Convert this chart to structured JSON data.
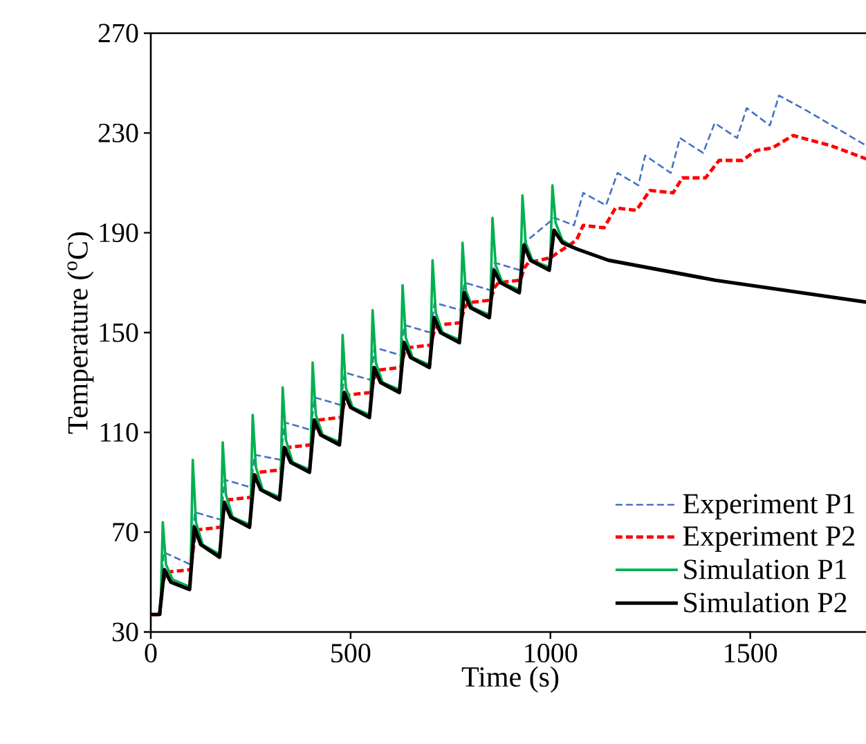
{
  "chart_data": {
    "type": "line",
    "xlabel": "Time (s)",
    "ylabel": "Temperature ($^{o}$C)",
    "xlim": [
      0,
      1800
    ],
    "ylim": [
      30,
      270
    ],
    "xticks": [
      0,
      500,
      1000,
      1500
    ],
    "yticks": [
      30,
      70,
      110,
      150,
      190,
      230,
      270
    ],
    "legend": "bottom right",
    "series": [
      {
        "name": "Experiment P1",
        "color": "#4472c4",
        "line_style": "dashed",
        "x": [
          0,
          22,
          32,
          100,
          110,
          175,
          185,
          250,
          260,
          325,
          335,
          400,
          410,
          475,
          485,
          550,
          560,
          625,
          635,
          700,
          710,
          775,
          785,
          850,
          860,
          925,
          935,
          1010,
          1059,
          1082,
          1139,
          1168,
          1220,
          1237,
          1301,
          1324,
          1382,
          1411,
          1467,
          1491,
          1549,
          1572,
          1641,
          1800
        ],
        "values": [
          37,
          37,
          62,
          57,
          78,
          75,
          91,
          88,
          101,
          99,
          114,
          111,
          124,
          121,
          134,
          131,
          144,
          141,
          153,
          150,
          162,
          159,
          170,
          167,
          178,
          175,
          186,
          196,
          193,
          206,
          201,
          214,
          209,
          221,
          214,
          228,
          222,
          234,
          228,
          240,
          233,
          245,
          239,
          224
        ]
      },
      {
        "name": "Experiment P2",
        "color": "#ff0000",
        "line_style": "dashed",
        "x": [
          0,
          22,
          30,
          40,
          100,
          110,
          120,
          175,
          185,
          195,
          250,
          260,
          270,
          325,
          335,
          345,
          400,
          410,
          420,
          475,
          485,
          495,
          550,
          560,
          570,
          625,
          635,
          645,
          700,
          710,
          720,
          775,
          785,
          795,
          850,
          860,
          870,
          925,
          935,
          945,
          1000,
          1065,
          1082,
          1134,
          1163,
          1215,
          1249,
          1307,
          1330,
          1388,
          1422,
          1480,
          1515,
          1555,
          1607,
          1700,
          1800
        ],
        "values": [
          37,
          37,
          50,
          54,
          55,
          68,
          71,
          72,
          80,
          83,
          84,
          91,
          94,
          95,
          102,
          104,
          105,
          112,
          115,
          116,
          122,
          125,
          126,
          132,
          135,
          136,
          142,
          144,
          145,
          151,
          153,
          154,
          160,
          162,
          163,
          168,
          170,
          171,
          176,
          178,
          180,
          187,
          193,
          192,
          200,
          199,
          207,
          206,
          212,
          212,
          219,
          219,
          223,
          224,
          229,
          225,
          219
        ]
      },
      {
        "name": "Simulation P1",
        "color": "#00b050",
        "line_style": "solid",
        "x": [
          20,
          24,
          30,
          38,
          55,
          99,
          105,
          113,
          130,
          174,
          180,
          188,
          205,
          249,
          255,
          263,
          280,
          324,
          330,
          338,
          355,
          399,
          405,
          413,
          430,
          474,
          480,
          488,
          505,
          549,
          555,
          563,
          580,
          624,
          630,
          638,
          655,
          699,
          705,
          713,
          730,
          774,
          780,
          788,
          805,
          849,
          855,
          863,
          880,
          924,
          930,
          938,
          955,
          999,
          1005,
          1013,
          1030,
          1066
        ],
        "values": [
          37,
          37,
          74,
          57,
          51,
          48,
          99,
          74,
          65,
          61,
          106,
          85,
          76,
          73,
          117,
          96,
          87,
          84,
          128,
          107,
          98,
          95,
          138,
          117,
          109,
          106,
          149,
          128,
          120,
          117,
          159,
          138,
          130,
          127,
          169,
          148,
          140,
          137,
          179,
          158,
          150,
          147,
          186,
          167,
          160,
          157,
          196,
          177,
          170,
          167,
          205,
          186,
          179,
          176,
          209,
          194,
          187,
          183.5
        ]
      },
      {
        "name": "Simulation P2",
        "color": "#000000",
        "line_style": "solid",
        "x": [
          0,
          22,
          34,
          50,
          97,
          109,
          125,
          172,
          184,
          200,
          247,
          259,
          275,
          322,
          334,
          350,
          397,
          409,
          425,
          472,
          484,
          500,
          547,
          559,
          575,
          622,
          634,
          650,
          697,
          709,
          725,
          772,
          784,
          800,
          847,
          859,
          875,
          922,
          934,
          950,
          997,
          1009,
          1030,
          1066,
          1145,
          1412,
          1800
        ],
        "values": [
          37,
          37,
          55,
          50,
          47,
          72,
          65,
          60,
          82,
          76,
          72,
          93,
          87,
          83,
          104,
          98,
          94,
          115,
          109,
          105,
          126,
          120,
          116,
          136,
          130,
          126,
          146,
          140,
          136,
          156,
          150,
          146,
          166,
          160,
          156,
          175,
          170,
          166,
          185,
          179,
          175,
          191,
          186,
          183.5,
          179,
          171,
          162
        ]
      }
    ]
  }
}
